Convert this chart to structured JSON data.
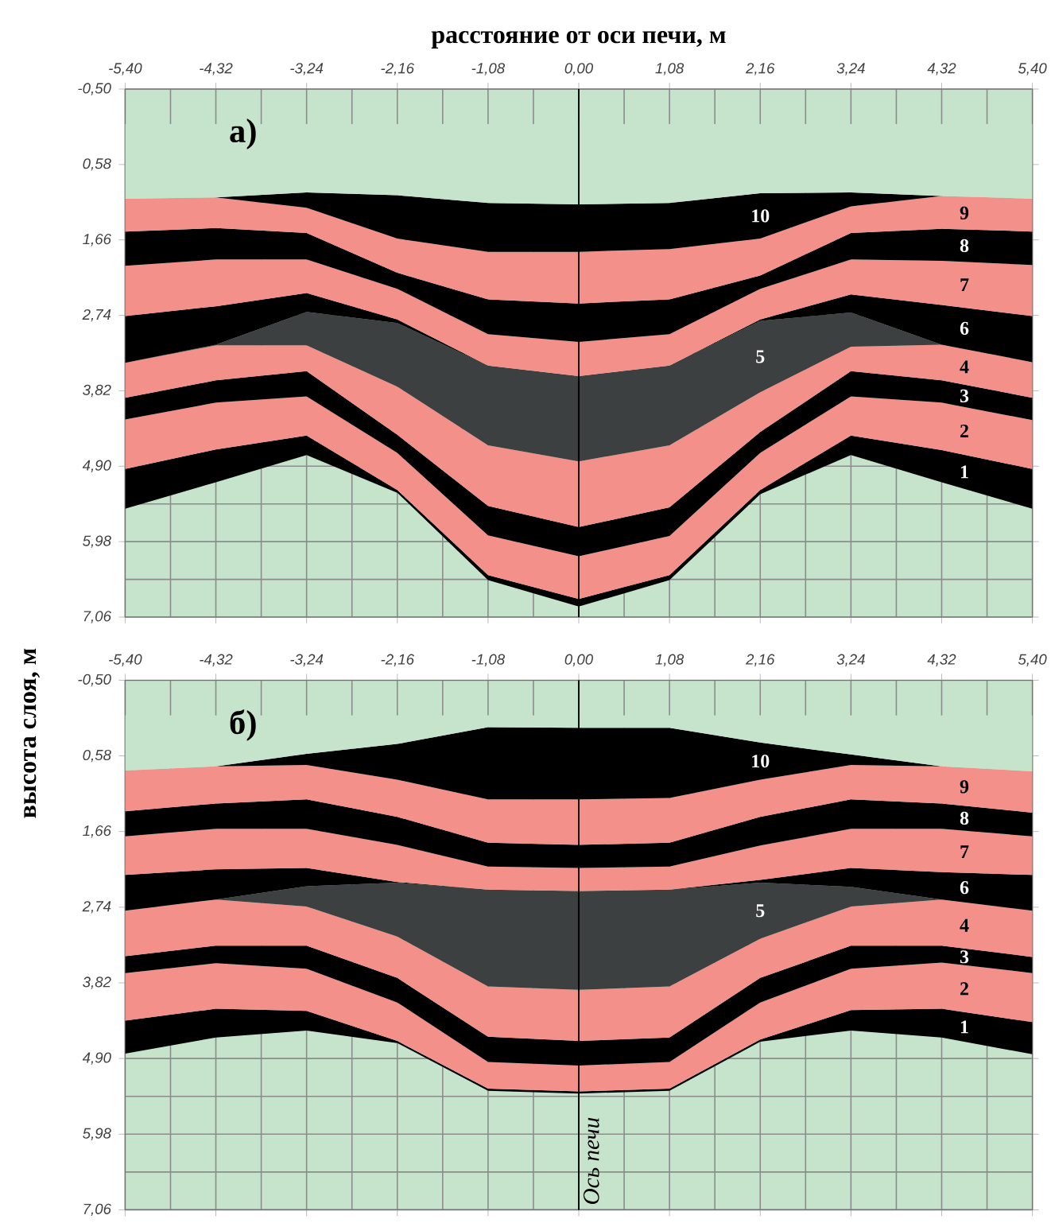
{
  "chart_data": [
    {
      "type": "area",
      "stacked": true,
      "grid": true,
      "xlabel": "расстояние от оси печи, м",
      "annotations": [
        "а)"
      ],
      "ref_lines": [
        {
          "axis": "x",
          "value": 0
        }
      ],
      "x": [
        -5.4,
        -4.32,
        -3.24,
        -2.16,
        -1.08,
        0,
        1.08,
        2.16,
        3.24,
        4.32,
        5.4
      ],
      "xlim": [
        -5.4,
        5.4
      ],
      "ylim": [
        7.06,
        -0.5
      ],
      "xticks": [
        {
          "value": -5.4,
          "label": "-5,40"
        },
        {
          "value": -4.32,
          "label": "-4,32"
        },
        {
          "value": -3.24,
          "label": "-3,24"
        },
        {
          "value": -2.16,
          "label": "-2,16"
        },
        {
          "value": -1.08,
          "label": "-1,08"
        },
        {
          "value": 0,
          "label": "0,00"
        },
        {
          "value": 1.08,
          "label": "1,08"
        },
        {
          "value": 2.16,
          "label": "2,16"
        },
        {
          "value": 3.24,
          "label": "3,24"
        },
        {
          "value": 4.32,
          "label": "4,32"
        },
        {
          "value": 5.4,
          "label": "5,40"
        }
      ],
      "yticks": [
        {
          "value": -0.5,
          "label": "-0,50"
        },
        {
          "value": 0.58,
          "label": "0,58"
        },
        {
          "value": 1.66,
          "label": "1,66"
        },
        {
          "value": 2.74,
          "label": "2,74"
        },
        {
          "value": 3.82,
          "label": "3,82"
        },
        {
          "value": 4.9,
          "label": "4,90"
        },
        {
          "value": 5.98,
          "label": "5,98"
        },
        {
          "value": 7.06,
          "label": "7,06"
        }
      ],
      "series": [
        {
          "color": "#c6e4cc",
          "values": [
            1.07,
            1.05,
            0.98,
            1.02,
            1.13,
            1.15,
            1.13,
            0.99,
            0.98,
            1.03,
            1.07
          ]
        },
        {
          "name": "10",
          "color": "#000000",
          "values": [
            0,
            0,
            0.22,
            0.62,
            0.7,
            0.68,
            0.66,
            0.65,
            0.2,
            0,
            0
          ]
        },
        {
          "name": "9",
          "color": "#f4908a",
          "values": [
            0.47,
            0.44,
            0.36,
            0.49,
            0.68,
            0.74,
            0.72,
            0.53,
            0.38,
            0.47,
            0.47
          ]
        },
        {
          "name": "8",
          "color": "#000000",
          "values": [
            0.49,
            0.45,
            0.38,
            0.23,
            0.5,
            0.55,
            0.5,
            0.19,
            0.38,
            0.46,
            0.48
          ]
        },
        {
          "name": "7",
          "color": "#f4908a",
          "values": [
            0.72,
            0.67,
            0.48,
            0.44,
            0.45,
            0.49,
            0.45,
            0.44,
            0.5,
            0.63,
            0.73
          ]
        },
        {
          "name": "6",
          "color": "#000000",
          "values": [
            0.67,
            0.55,
            0.27,
            0.05,
            0,
            0,
            0,
            0.02,
            0.26,
            0.57,
            0.66
          ]
        },
        {
          "name": "5",
          "color": "#3c4040",
          "values": [
            0,
            0.01,
            0.48,
            0.91,
            1.14,
            1.22,
            1.14,
            1.02,
            0.49,
            0,
            0
          ]
        },
        {
          "name": "4",
          "color": "#f4908a",
          "values": [
            0.5,
            0.5,
            0.37,
            0.69,
            0.87,
            0.94,
            0.89,
            0.57,
            0.35,
            0.51,
            0.51
          ]
        },
        {
          "name": "3",
          "color": "#000000",
          "values": [
            0.31,
            0.32,
            0.36,
            0.26,
            0.42,
            0.42,
            0.41,
            0.3,
            0.36,
            0.32,
            0.32
          ]
        },
        {
          "name": "2",
          "color": "#f4908a",
          "values": [
            0.71,
            0.67,
            0.56,
            0.53,
            0.57,
            0.61,
            0.56,
            0.53,
            0.56,
            0.68,
            0.7
          ]
        },
        {
          "name": "1",
          "color": "#000000",
          "values": [
            0.57,
            0.47,
            0.28,
            0.04,
            0.07,
            0.11,
            0.07,
            0.06,
            0.28,
            0.46,
            0.57
          ]
        }
      ]
    },
    {
      "type": "area",
      "stacked": true,
      "grid": true,
      "ylabel": "высота слоя, м",
      "annotations": [
        "б)"
      ],
      "ref_lines": [
        {
          "axis": "x",
          "value": 0,
          "label": "Ось печи"
        }
      ],
      "x": [
        -5.4,
        -4.32,
        -3.24,
        -2.16,
        -1.08,
        0,
        1.08,
        2.16,
        3.24,
        4.32,
        5.4
      ],
      "xlim": [
        -5.4,
        5.4
      ],
      "ylim": [
        7.06,
        -0.5
      ],
      "xticks": [
        {
          "value": -5.4,
          "label": "-5,40"
        },
        {
          "value": -4.32,
          "label": "-4,32"
        },
        {
          "value": -3.24,
          "label": "-3,24"
        },
        {
          "value": -2.16,
          "label": "-2,16"
        },
        {
          "value": -1.08,
          "label": "-1,08"
        },
        {
          "value": 0,
          "label": "0,00"
        },
        {
          "value": 1.08,
          "label": "1,08"
        },
        {
          "value": 2.16,
          "label": "2,16"
        },
        {
          "value": 3.24,
          "label": "3,24"
        },
        {
          "value": 4.32,
          "label": "4,32"
        },
        {
          "value": 5.4,
          "label": "5,40"
        }
      ],
      "yticks": [
        {
          "value": -0.5,
          "label": "-0,50"
        },
        {
          "value": 0.58,
          "label": "0,58"
        },
        {
          "value": 1.66,
          "label": "1,66"
        },
        {
          "value": 2.74,
          "label": "2,74"
        },
        {
          "value": 3.82,
          "label": "3,82"
        },
        {
          "value": 4.9,
          "label": "4,90"
        },
        {
          "value": 5.98,
          "label": "5,98"
        },
        {
          "value": 7.06,
          "label": "7,06"
        }
      ],
      "series": [
        {
          "color": "#c6e4cc",
          "values": [
            0.79,
            0.73,
            0.55,
            0.41,
            0.17,
            0.18,
            0.18,
            0.39,
            0.56,
            0.73,
            0.8
          ]
        },
        {
          "name": "10",
          "color": "#000000",
          "values": [
            0,
            0,
            0.16,
            0.51,
            1.03,
            1.02,
            1.0,
            0.53,
            0.15,
            0,
            0
          ]
        },
        {
          "name": "9",
          "color": "#f4908a",
          "values": [
            0.58,
            0.53,
            0.49,
            0.53,
            0.62,
            0.65,
            0.64,
            0.53,
            0.49,
            0.53,
            0.59
          ]
        },
        {
          "name": "8",
          "color": "#000000",
          "values": [
            0.36,
            0.36,
            0.42,
            0.4,
            0.34,
            0.33,
            0.34,
            0.41,
            0.42,
            0.36,
            0.34
          ]
        },
        {
          "name": "7",
          "color": "#f4908a",
          "values": [
            0.55,
            0.58,
            0.56,
            0.53,
            0.33,
            0.33,
            0.33,
            0.49,
            0.56,
            0.62,
            0.55
          ]
        },
        {
          "name": "6",
          "color": "#000000",
          "values": [
            0.51,
            0.43,
            0.26,
            0.01,
            0,
            0,
            0,
            0.04,
            0.27,
            0.39,
            0.51
          ]
        },
        {
          "name": "5",
          "color": "#3c4040",
          "values": [
            0,
            0,
            0.29,
            0.77,
            1.38,
            1.41,
            1.38,
            0.8,
            0.28,
            0,
            0
          ]
        },
        {
          "name": "4",
          "color": "#f4908a",
          "values": [
            0.65,
            0.66,
            0.56,
            0.59,
            0.72,
            0.73,
            0.73,
            0.56,
            0.56,
            0.66,
            0.66
          ]
        },
        {
          "name": "3",
          "color": "#000000",
          "values": [
            0.24,
            0.25,
            0.33,
            0.35,
            0.36,
            0.35,
            0.35,
            0.35,
            0.33,
            0.24,
            0.23
          ]
        },
        {
          "name": "2",
          "color": "#f4908a",
          "values": [
            0.68,
            0.65,
            0.6,
            0.55,
            0.38,
            0.37,
            0.38,
            0.53,
            0.59,
            0.66,
            0.7
          ]
        },
        {
          "name": "1",
          "color": "#000000",
          "values": [
            0.47,
            0.41,
            0.28,
            0.03,
            0.03,
            0.03,
            0.03,
            0.03,
            0.29,
            0.41,
            0.46
          ]
        }
      ]
    }
  ]
}
